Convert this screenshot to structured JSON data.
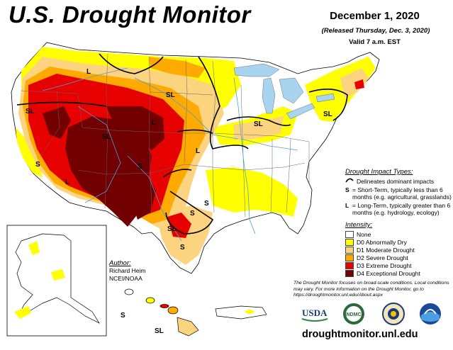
{
  "title": "U.S. Drought Monitor",
  "date": "December 1, 2020",
  "released": "(Released Thursday, Dec. 3, 2020)",
  "valid": "Valid 7 a.m. EST",
  "impact": {
    "header": "Drought Impact Types:",
    "delineates": "Delineates dominant impacts",
    "short_key": "S",
    "short_text": "= Short-Term, typically less than 6 months (e.g. agricultural, grasslands)",
    "long_key": "L",
    "long_text": "= Long-Term, typically greater than 6 months (e.g. hydrology, ecology)"
  },
  "intensity": {
    "header": "Intensity:",
    "levels": [
      {
        "label": "None",
        "color": "#ffffff"
      },
      {
        "label": "D0 Abnormally Dry",
        "color": "#ffff00"
      },
      {
        "label": "D1 Moderate Drought",
        "color": "#fcd37f"
      },
      {
        "label": "D2 Severe Drought",
        "color": "#ffaa00"
      },
      {
        "label": "D3 Extreme Drought",
        "color": "#e60000"
      },
      {
        "label": "D4 Exceptional Drought",
        "color": "#730000"
      }
    ]
  },
  "author": {
    "header": "Author:",
    "name": "Richard Heim",
    "org": "NCEI/NOAA"
  },
  "note": "The Drought Monitor focuses on broad-scale conditions. Local conditions may vary. For more information on the Drought Monitor, go to https://droughtmonitor.unl.edu/About.aspx",
  "url": "droughtmonitor.unl.edu",
  "logos": {
    "usda": "USDA",
    "ndmc": "NDMC"
  },
  "map_labels": {
    "sl_nw": "SL",
    "l_nw": "L",
    "sl_mont": "SL",
    "sl_co": "SL",
    "s_ca": "S",
    "l_ne": "L",
    "sl_mi": "SL",
    "sl_ny": "SL",
    "l_az": "L",
    "s_nm": "S",
    "s_ok": "S",
    "s_tx": "S",
    "sl_tx": "SL",
    "s_tx2": "S",
    "l_ks": "L",
    "s_hi": "S",
    "sl_hi": "SL"
  },
  "colors": {
    "water": "#a8d4f0",
    "border": "#000000"
  }
}
